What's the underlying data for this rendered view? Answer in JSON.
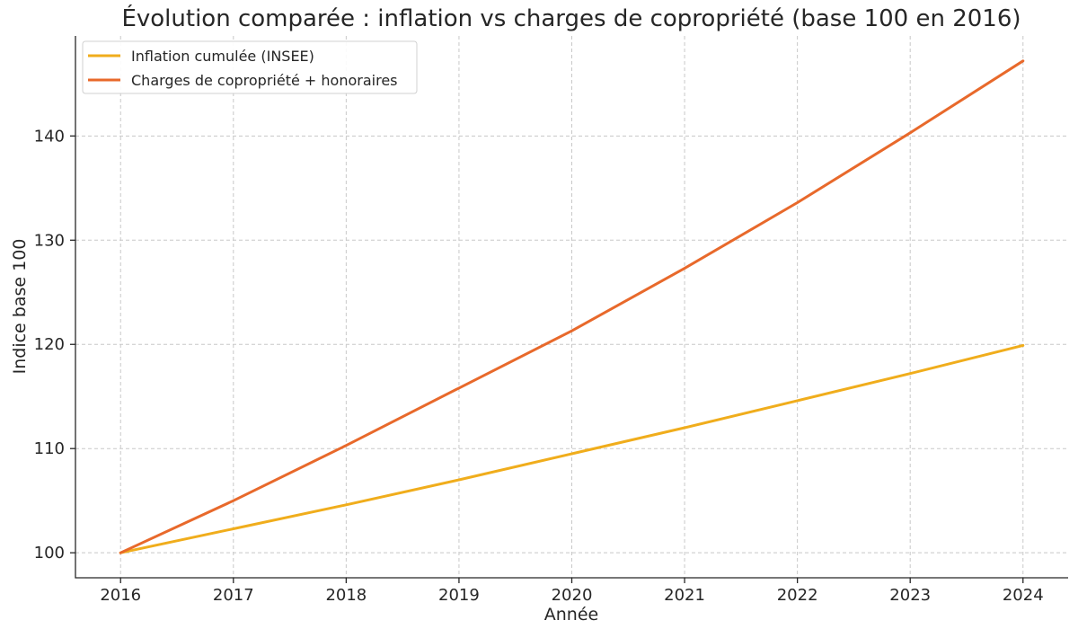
{
  "chart_data": {
    "type": "line",
    "title": "Évolution comparée : inflation vs charges de copropriété (base 100 en 2016)",
    "xlabel": "Année",
    "ylabel": "Indice base 100",
    "x": [
      2016,
      2017,
      2018,
      2019,
      2020,
      2021,
      2022,
      2023,
      2024
    ],
    "xlim": [
      2015.6,
      2024.4
    ],
    "ylim": [
      97.6,
      149.6
    ],
    "yticks": [
      100,
      110,
      120,
      130,
      140
    ],
    "grid": true,
    "legend_position": "top-left",
    "series": [
      {
        "name": "Inflation cumulée (INSEE)",
        "color": "#f0ad1c",
        "values": [
          100.0,
          102.3,
          104.6,
          107.0,
          109.5,
          112.0,
          114.6,
          117.2,
          119.9
        ]
      },
      {
        "name": "Charges de copropriété + honoraires",
        "color": "#e8692b",
        "values": [
          100.0,
          105.0,
          110.3,
          115.8,
          121.3,
          127.3,
          133.6,
          140.3,
          147.2
        ]
      }
    ]
  }
}
